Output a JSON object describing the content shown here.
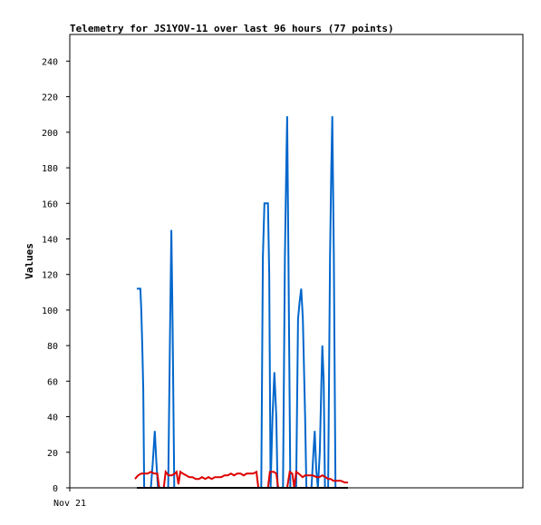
{
  "chart_data": {
    "type": "line",
    "title": "Telemetry for JS1YOV-11 over last 96 hours (77 points)",
    "ylabel": "Values",
    "xlabel": "",
    "ylim": [
      0,
      255
    ],
    "xlim": [
      0,
      96
    ],
    "yticks": [
      0,
      20,
      40,
      60,
      80,
      100,
      120,
      140,
      160,
      180,
      200,
      220,
      240
    ],
    "xticks": [
      {
        "x": 0,
        "label": "Nov 21"
      }
    ],
    "grid": false,
    "series": [
      {
        "color": "#0066cc",
        "points": [
          [
            18.6,
            112
          ],
          [
            19.7,
            112
          ],
          [
            20.0,
            100
          ],
          [
            20.3,
            80
          ],
          [
            20.6,
            55
          ],
          [
            20.9,
            0
          ],
          [
            23.0,
            0
          ],
          [
            23.6,
            15
          ],
          [
            24.2,
            32
          ],
          [
            24.7,
            15
          ],
          [
            25.2,
            0
          ],
          [
            28.4,
            0
          ],
          [
            29.0,
            90
          ],
          [
            29.4,
            145
          ],
          [
            29.8,
            90
          ],
          [
            30.3,
            0
          ],
          [
            57.5,
            0
          ],
          [
            58.0,
            130
          ],
          [
            58.5,
            160
          ],
          [
            59.6,
            160
          ],
          [
            60.0,
            120
          ],
          [
            60.4,
            0
          ],
          [
            61.0,
            40
          ],
          [
            61.6,
            65
          ],
          [
            62.2,
            40
          ],
          [
            62.6,
            0
          ],
          [
            64.3,
            0
          ],
          [
            64.9,
            130
          ],
          [
            65.3,
            180
          ],
          [
            65.6,
            209
          ],
          [
            66.0,
            130
          ],
          [
            66.6,
            0
          ],
          [
            68.4,
            0
          ],
          [
            69.0,
            95
          ],
          [
            69.5,
            105
          ],
          [
            70.0,
            112
          ],
          [
            70.5,
            95
          ],
          [
            71.2,
            40
          ],
          [
            71.6,
            0
          ],
          [
            73.2,
            0
          ],
          [
            73.8,
            20
          ],
          [
            74.2,
            32
          ],
          [
            74.7,
            10
          ],
          [
            75.2,
            0
          ],
          [
            75.8,
            20
          ],
          [
            76.3,
            60
          ],
          [
            76.6,
            80
          ],
          [
            77.0,
            60
          ],
          [
            77.4,
            0
          ],
          [
            78.4,
            0
          ],
          [
            79.0,
            130
          ],
          [
            79.4,
            180
          ],
          [
            79.7,
            209
          ],
          [
            80.2,
            130
          ],
          [
            80.7,
            0
          ]
        ]
      },
      {
        "color": "#dd0000",
        "points": [
          [
            18.0,
            5
          ],
          [
            19.0,
            7
          ],
          [
            20.0,
            8
          ],
          [
            21.0,
            8
          ],
          [
            22.0,
            8
          ],
          [
            23.0,
            9
          ],
          [
            24.0,
            8
          ],
          [
            25.0,
            8
          ],
          [
            25.6,
            0
          ],
          [
            27.0,
            0
          ],
          [
            27.6,
            9
          ],
          [
            28.5,
            7
          ],
          [
            29.5,
            7
          ],
          [
            30.5,
            8
          ],
          [
            31.0,
            9
          ],
          [
            31.6,
            2
          ],
          [
            32.2,
            9
          ],
          [
            33.0,
            8
          ],
          [
            34.0,
            7
          ],
          [
            35.0,
            6
          ],
          [
            36.0,
            6
          ],
          [
            37.0,
            5
          ],
          [
            38.0,
            5
          ],
          [
            39.0,
            6
          ],
          [
            40.0,
            5
          ],
          [
            41.0,
            6
          ],
          [
            42.0,
            5
          ],
          [
            43.0,
            6
          ],
          [
            44.0,
            6
          ],
          [
            45.0,
            6
          ],
          [
            46.0,
            7
          ],
          [
            47.0,
            7
          ],
          [
            48.0,
            8
          ],
          [
            49.0,
            7
          ],
          [
            50.0,
            8
          ],
          [
            51.0,
            8
          ],
          [
            52.0,
            7
          ],
          [
            53.0,
            8
          ],
          [
            54.0,
            8
          ],
          [
            55.0,
            8
          ],
          [
            56.0,
            9
          ],
          [
            56.6,
            0
          ],
          [
            59.6,
            0
          ],
          [
            60.2,
            9
          ],
          [
            61.4,
            9
          ],
          [
            62.2,
            8
          ],
          [
            62.8,
            0
          ],
          [
            65.6,
            0
          ],
          [
            66.4,
            9
          ],
          [
            67.2,
            8
          ],
          [
            67.8,
            0
          ],
          [
            68.4,
            9
          ],
          [
            69.2,
            8
          ],
          [
            70.4,
            6
          ],
          [
            71.2,
            7
          ],
          [
            72.4,
            7
          ],
          [
            73.6,
            7
          ],
          [
            74.8,
            6
          ],
          [
            75.6,
            6
          ],
          [
            76.6,
            7
          ],
          [
            77.6,
            6
          ],
          [
            78.4,
            5
          ],
          [
            79.2,
            5
          ],
          [
            80.0,
            4
          ],
          [
            81.2,
            4
          ],
          [
            82.4,
            4
          ],
          [
            83.6,
            3
          ],
          [
            84.6,
            3
          ]
        ]
      },
      {
        "color": "#000000",
        "points": [
          [
            18.6,
            0
          ],
          [
            84.6,
            0
          ]
        ]
      }
    ]
  }
}
